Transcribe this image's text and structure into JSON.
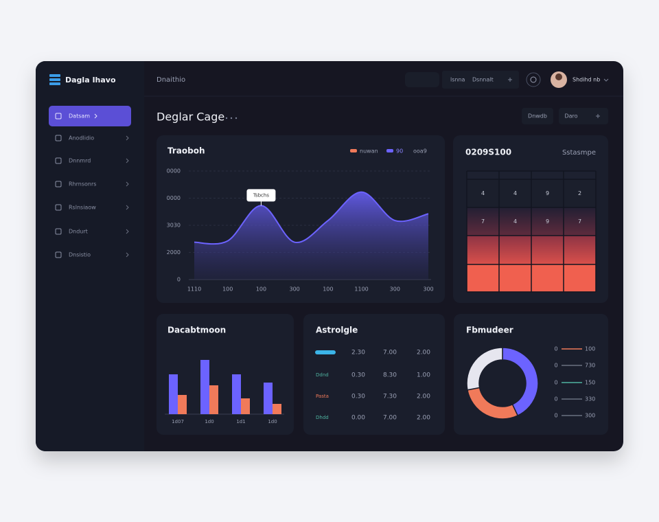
{
  "sidebar": {
    "logo": "Dagla Ihavo",
    "menu": [
      "Datsam",
      "Anodlidio",
      "Dnnmrd",
      "Rhrnsonrs",
      "Rslnsiaow",
      "Dndurt",
      "Dnsistio"
    ]
  },
  "topbar": {
    "breadcrumb": "Dnaithio",
    "search": "lsnna",
    "filter": "Dsnnalt",
    "user": "Shdihd nb"
  },
  "page": {
    "title": "Deglar Cage",
    "buttons": [
      "Dnwdb",
      "Daro"
    ]
  },
  "chart_data": [
    {
      "type": "area",
      "title": "Traoboh",
      "legend": [
        {
          "label": "nuwan",
          "color": "#f07a5a"
        },
        {
          "label": "90",
          "color": "#6c63ff"
        },
        {
          "label": "ooa9"
        }
      ],
      "annotation": "Tsbchs",
      "categories": [
        "1110",
        "100",
        "100",
        "300",
        "100",
        "1100",
        "300",
        "300"
      ],
      "series": [
        {
          "color": "#6c63ff",
          "values": [
            2750,
            2850,
            5450,
            2750,
            4350,
            6450,
            4350,
            4850
          ]
        }
      ],
      "ylim": [
        0,
        8000
      ],
      "yticks": [
        0,
        2000,
        {
          "value": 4000,
          "label": "3030"
        },
        {
          "value": 6000,
          "label": "0000"
        },
        {
          "value": 8000,
          "label": "0000"
        }
      ],
      "grid": true
    },
    {
      "type": "bar",
      "title": "Dacabtmoon",
      "categories": [
        "1d07",
        "1d0",
        "1d1",
        "1d0"
      ],
      "series": [
        {
          "color": "#6c63ff",
          "values": [
            58,
            79,
            58,
            46
          ]
        },
        {
          "color": "#f07a5a",
          "values": [
            28,
            42,
            23,
            15
          ]
        }
      ],
      "ylim": [
        0,
        100
      ]
    },
    {
      "type": "pie",
      "title": "Fbmudeer",
      "values": [
        43,
        29,
        28
      ],
      "colors": [
        "#6c63ff",
        "#f07a5a",
        "#e6e6ef"
      ],
      "legend": [
        {
          "label": "0",
          "value": "100",
          "color": "#f07a5a"
        },
        {
          "label": "0",
          "value": "730",
          "color": "#6b7080"
        },
        {
          "label": "0",
          "value": "150",
          "color": "#4fb3a0"
        },
        {
          "label": "0",
          "value": "330",
          "color": "#6b7080"
        },
        {
          "label": "0",
          "value": "300",
          "color": "#6b7080"
        }
      ]
    }
  ],
  "heatmap": {
    "title": "0209S100",
    "subtitle": "Sstasmpe",
    "rows": [
      [
        "4",
        "4",
        "9",
        "2"
      ],
      [
        "7",
        "4",
        "9",
        "7"
      ]
    ]
  },
  "activity": {
    "title": "Astrolgle",
    "rows": [
      {
        "color": "#3bb4e8",
        "values": [
          "2.30",
          "7.00",
          "2.00"
        ]
      },
      {
        "label": "Ddnd",
        "color": "#4fb3a0",
        "values": [
          "0.30",
          "8.30",
          "1.00"
        ]
      },
      {
        "label": "Pasta",
        "color": "#f07a5a",
        "values": [
          "0.30",
          "7.30",
          "2.00"
        ]
      },
      {
        "label": "Dhdd",
        "color": "#4fb3a0",
        "values": [
          "0.00",
          "7.00",
          "2.00"
        ]
      }
    ]
  }
}
